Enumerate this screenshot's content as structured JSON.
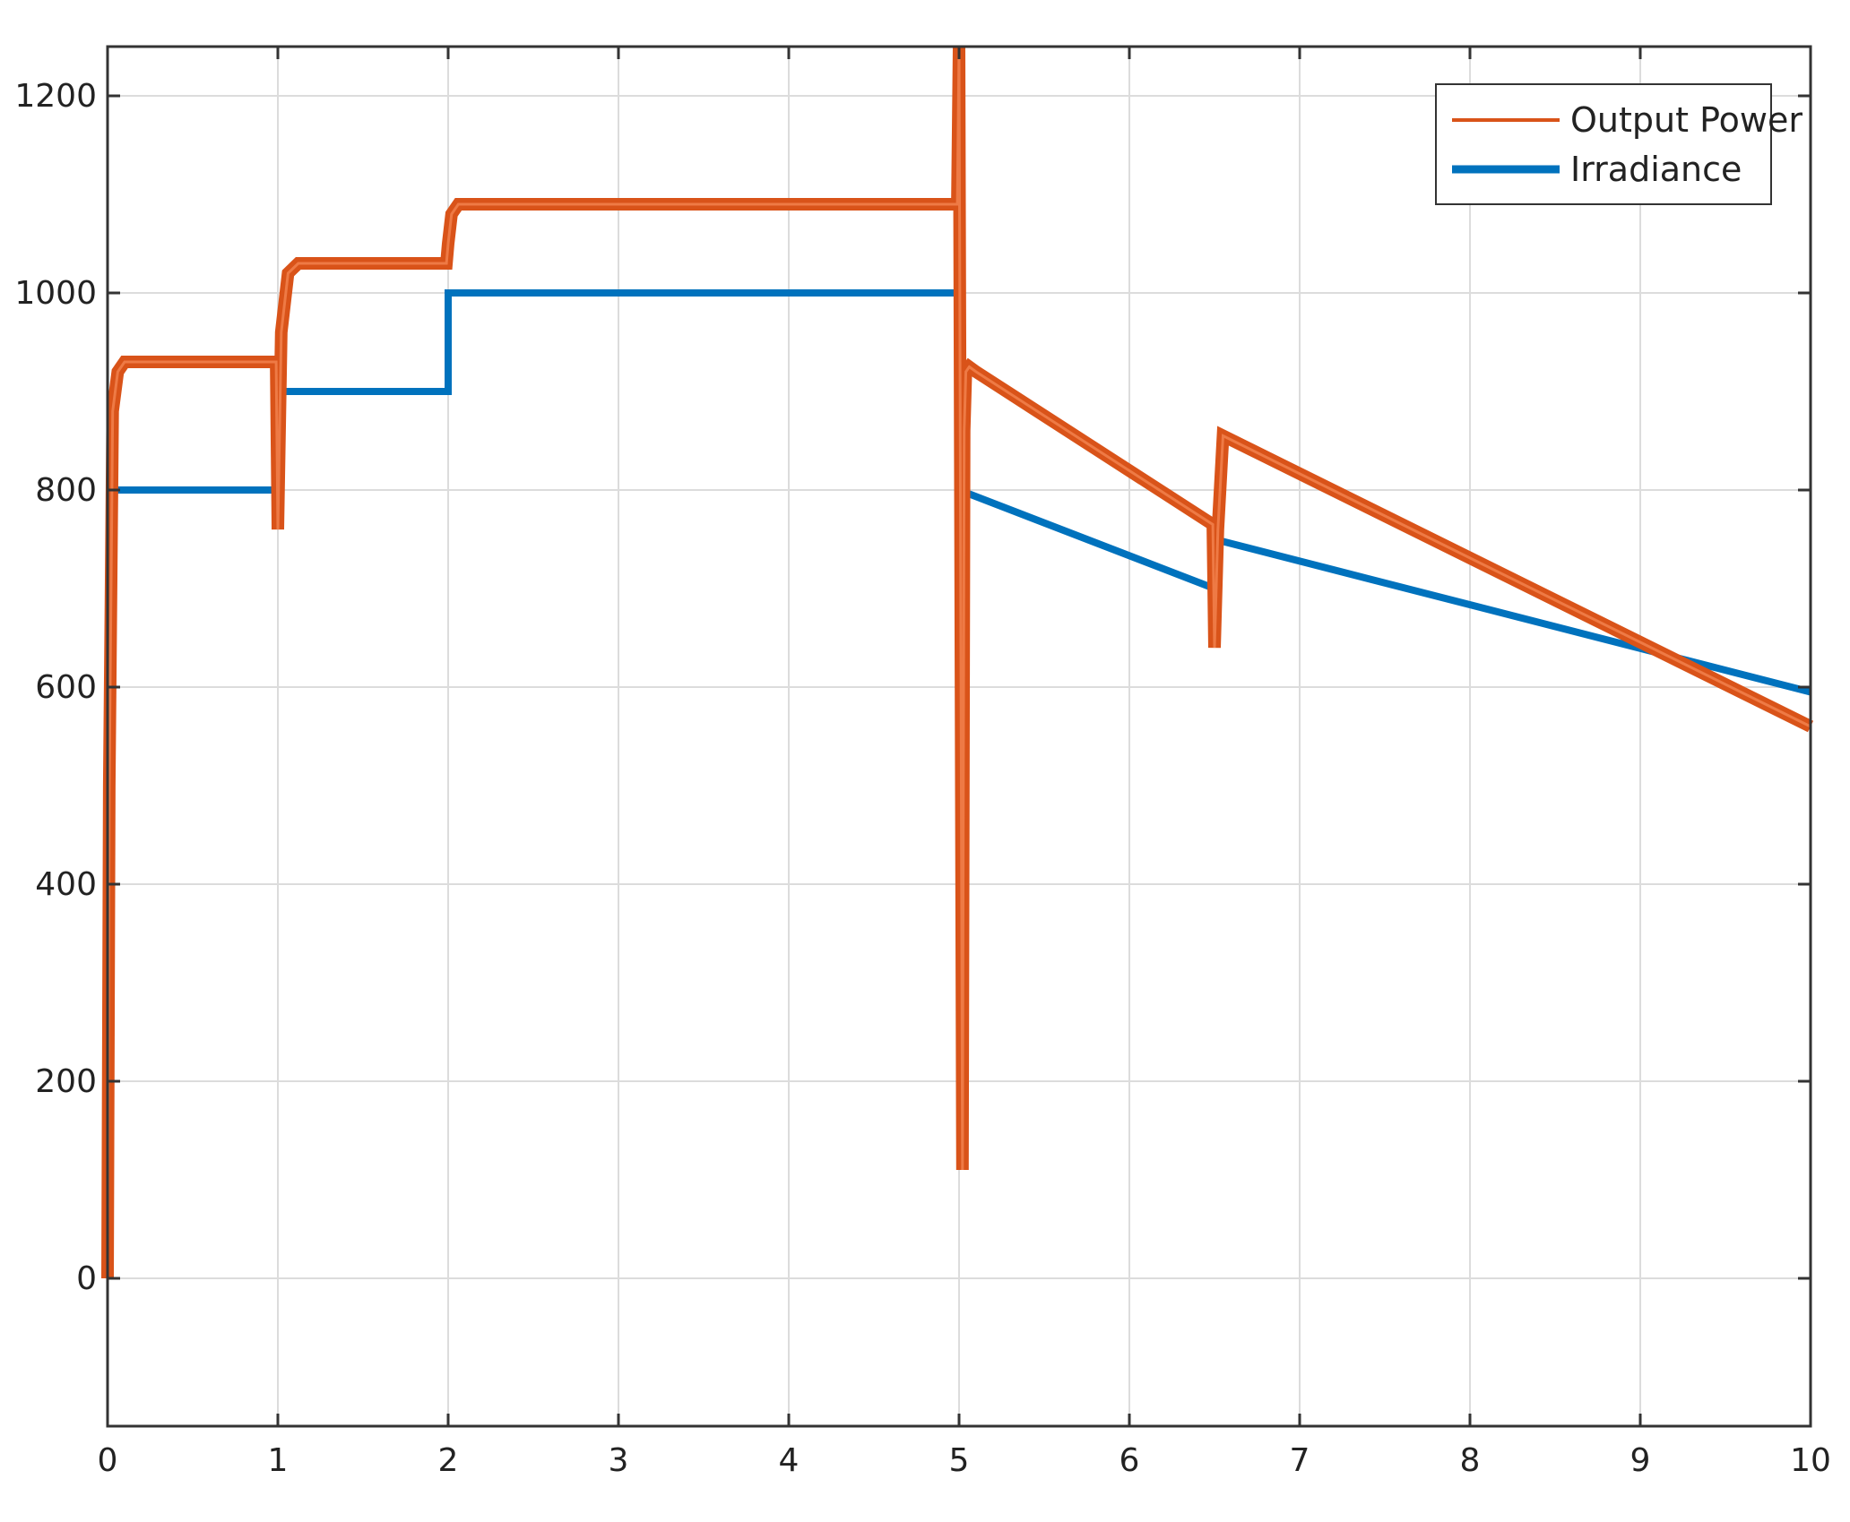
{
  "chart_data": {
    "type": "line",
    "title": "",
    "xlabel": "",
    "ylabel": "",
    "xlim": [
      0,
      10
    ],
    "ylim": [
      -150,
      1250
    ],
    "x_ticks": [
      0,
      1,
      2,
      3,
      4,
      5,
      6,
      7,
      8,
      9,
      10
    ],
    "y_ticks": [
      0,
      200,
      400,
      600,
      800,
      1000,
      1200
    ],
    "grid": true,
    "legend_placement": "top-right",
    "series": [
      {
        "name": "Output Power",
        "color": "#D95319",
        "style": "thick-ripple",
        "x": [
          0,
          0.01,
          0.03,
          0.06,
          0.1,
          0.99,
          1.0,
          1.02,
          1.06,
          1.12,
          1.99,
          2.0,
          2.02,
          2.06,
          2.12,
          4.99,
          5.0,
          5.02,
          5.03,
          5.04,
          5.06,
          5.1,
          6.49,
          6.5,
          6.52,
          6.55,
          10.0
        ],
        "y": [
          0,
          500,
          880,
          920,
          930,
          930,
          760,
          960,
          1020,
          1030,
          1030,
          1050,
          1080,
          1090,
          1090,
          1090,
          1250,
          110,
          860,
          920,
          925,
          920,
          765,
          640,
          760,
          855,
          560
        ]
      },
      {
        "name": "Irradiance",
        "color": "#0072BD",
        "style": "solid",
        "x": [
          0,
          1,
          1,
          2,
          2,
          5,
          5,
          6.5,
          6.5,
          10
        ],
        "y": [
          800,
          800,
          900,
          900,
          1000,
          1000,
          800,
          700,
          750,
          595
        ]
      }
    ]
  }
}
